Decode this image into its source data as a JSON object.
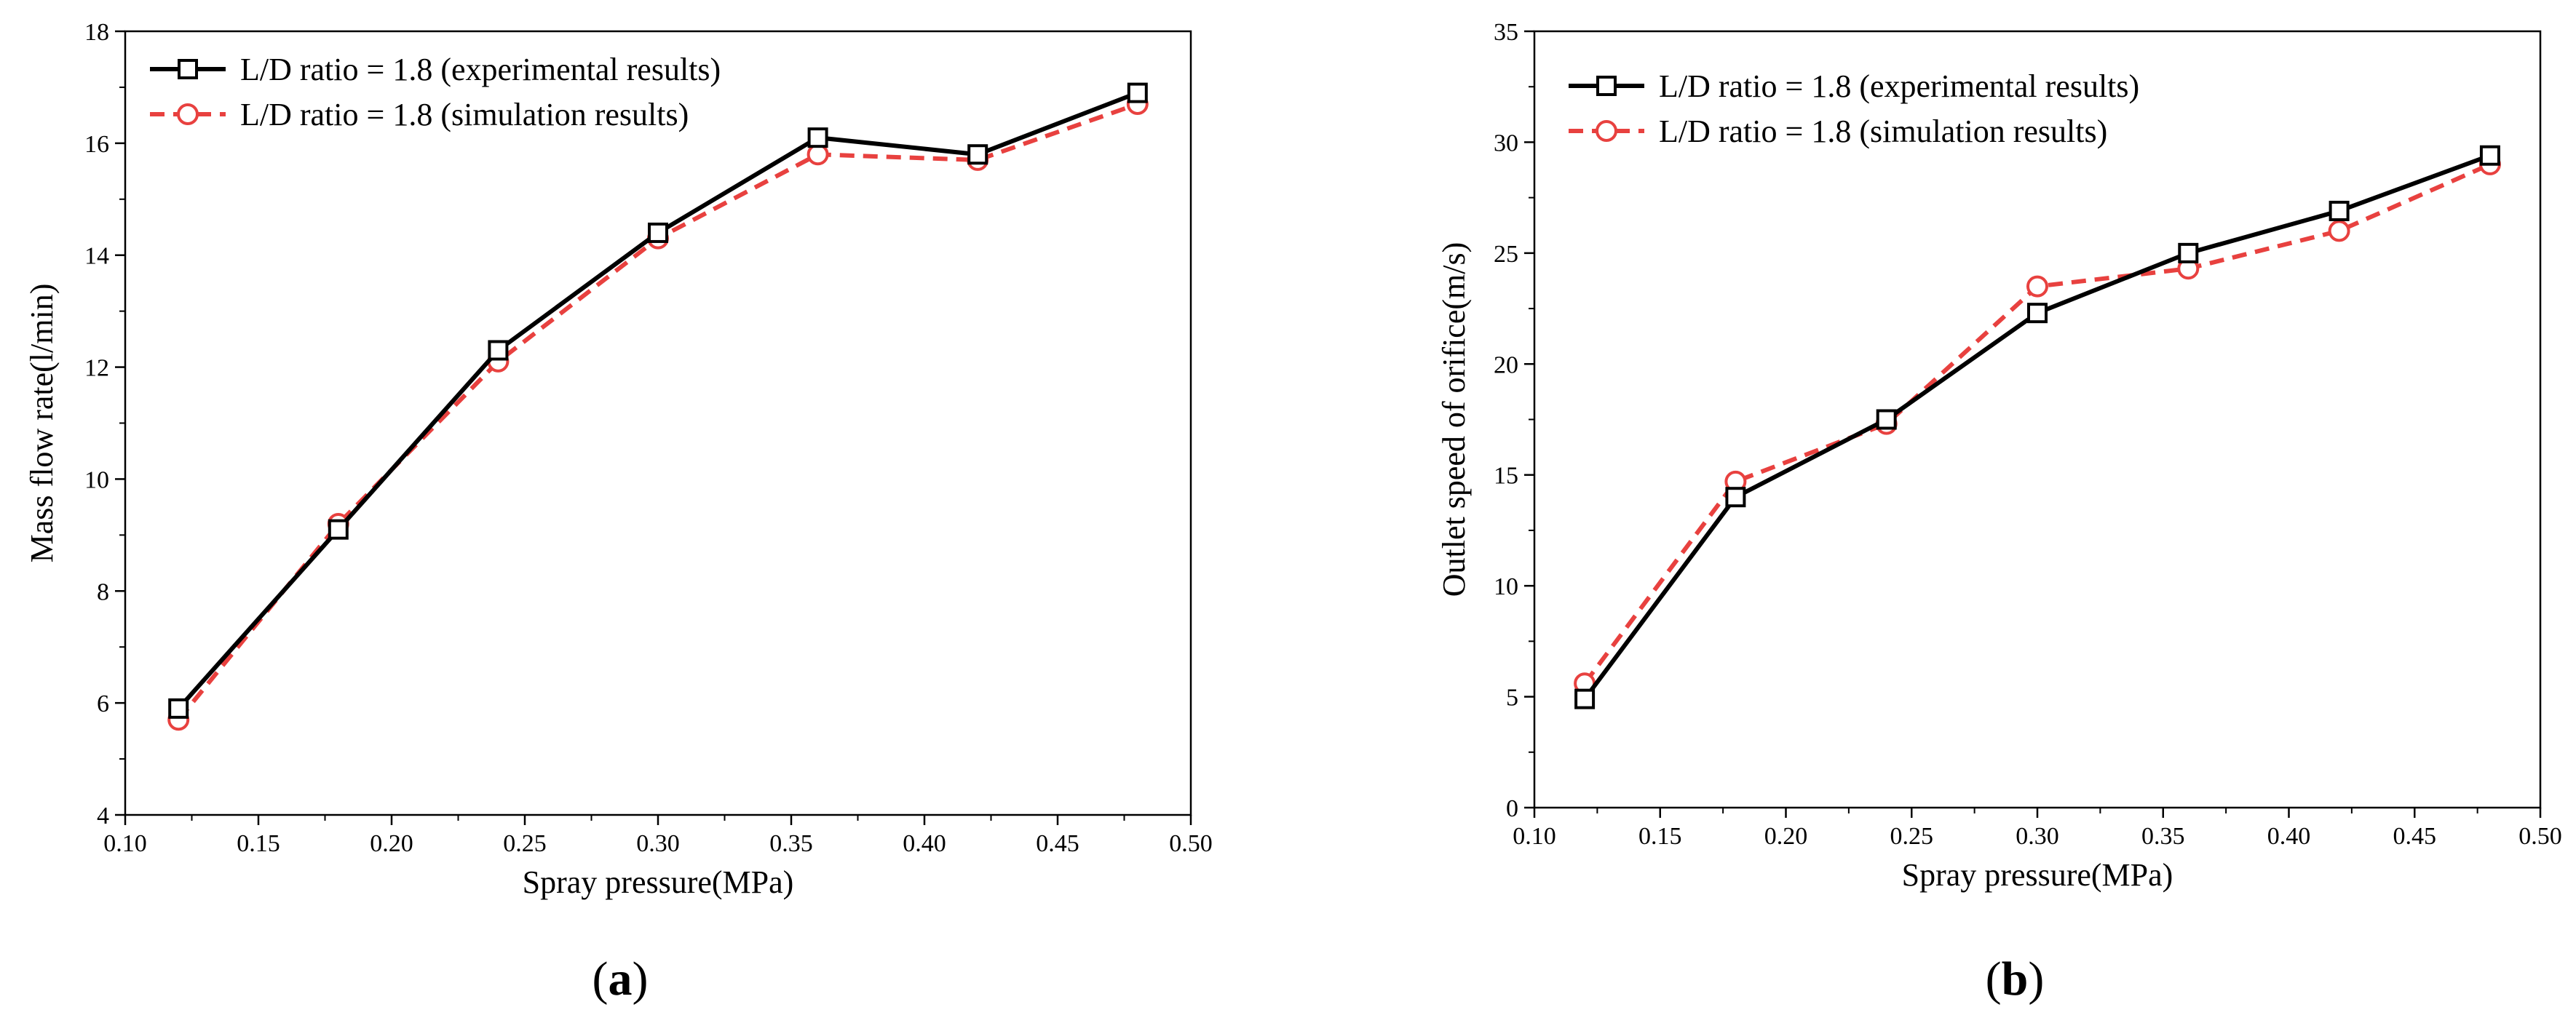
{
  "figure": {
    "panels": [
      {
        "id": "a",
        "label_open": "(",
        "label_letter": "a",
        "label_close": ")"
      },
      {
        "id": "b",
        "label_open": "(",
        "label_letter": "b",
        "label_close": ")"
      }
    ]
  },
  "colors": {
    "experimental": "#000000",
    "simulation": "#e8413f",
    "axis": "#000000"
  },
  "chart_data": [
    {
      "type": "line",
      "xlabel": "Spray pressure(MPa)",
      "ylabel": "Mass flow rate(l/min)",
      "xlim": [
        0.1,
        0.5
      ],
      "ylim": [
        4,
        18
      ],
      "x_ticks": [
        "0.10",
        "0.15",
        "0.20",
        "0.25",
        "0.30",
        "0.35",
        "0.40",
        "0.45",
        "0.50"
      ],
      "y_ticks": [
        "4",
        "6",
        "8",
        "10",
        "12",
        "14",
        "16",
        "18"
      ],
      "x": [
        0.12,
        0.18,
        0.24,
        0.3,
        0.36,
        0.42,
        0.48
      ],
      "legend_position": "top-left",
      "series": [
        {
          "name": "L/D ratio = 1.8 (experimental results)",
          "marker": "square",
          "line_style": "solid",
          "values": [
            5.9,
            9.1,
            12.3,
            14.4,
            16.1,
            15.8,
            16.9
          ]
        },
        {
          "name": "L/D ratio = 1.8 (simulation results)",
          "marker": "circle",
          "line_style": "dashed",
          "values": [
            5.7,
            9.2,
            12.1,
            14.3,
            15.8,
            15.7,
            16.7
          ]
        }
      ]
    },
    {
      "type": "line",
      "xlabel": "Spray pressure(MPa)",
      "ylabel": "Outlet speed of orifice(m/s)",
      "xlim": [
        0.1,
        0.5
      ],
      "ylim": [
        0,
        35
      ],
      "x_ticks": [
        "0.10",
        "0.15",
        "0.20",
        "0.25",
        "0.30",
        "0.35",
        "0.40",
        "0.45",
        "0.50"
      ],
      "y_ticks": [
        "0",
        "5",
        "10",
        "15",
        "20",
        "25",
        "30",
        "35"
      ],
      "x": [
        0.12,
        0.18,
        0.24,
        0.3,
        0.36,
        0.42,
        0.48
      ],
      "legend_position": "top-left",
      "series": [
        {
          "name": "L/D ratio = 1.8 (experimental results)",
          "marker": "square",
          "line_style": "solid",
          "values": [
            4.9,
            14.0,
            17.5,
            22.3,
            25.0,
            26.9,
            29.4
          ]
        },
        {
          "name": "L/D ratio = 1.8 (simulation results)",
          "marker": "circle",
          "line_style": "dashed",
          "values": [
            5.6,
            14.7,
            17.3,
            23.5,
            24.3,
            26.0,
            29.0
          ]
        }
      ]
    }
  ]
}
